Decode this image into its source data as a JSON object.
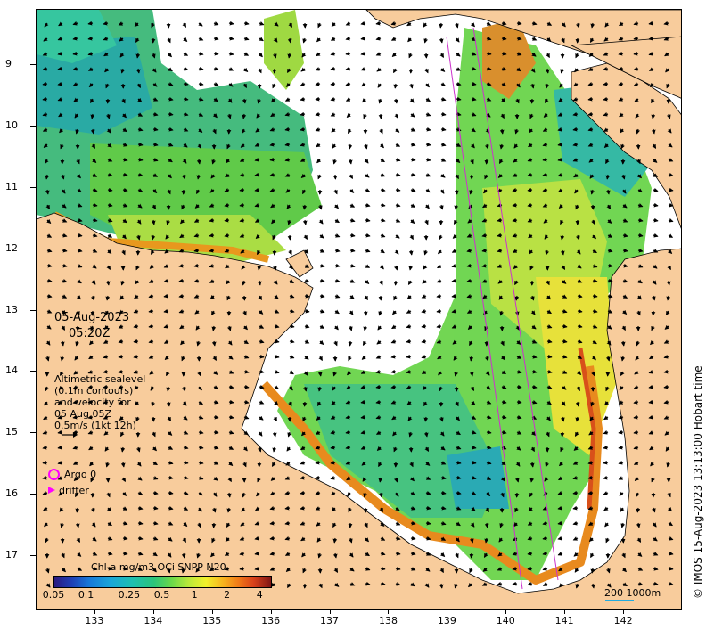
{
  "map": {
    "date": "05-Aug-2023",
    "time": "05:20Z",
    "notes": [
      "Altimetric sealevel",
      "(0.1m contours)",
      "and velocity for",
      "05 Aug 05Z",
      "0.5m/s (1kt 12h)"
    ],
    "legend": {
      "argo": "Argo 0",
      "drifter": "drifter"
    },
    "colorbar_title": "Chl-a mg/m3 OCi SNPP N20",
    "colorbar_ticks": [
      "0.05",
      "0.1",
      "0.25",
      "0.5",
      "1",
      "2",
      "4"
    ],
    "colorbar_range": [
      0.05,
      5
    ],
    "colorbar_scale": "log",
    "scale_label": "200  1000m",
    "copyright": "© IMOS 15-Aug-2023 13:13:00 Hobart time",
    "lat_ticks": [
      "9",
      "10",
      "11",
      "12",
      "13",
      "14",
      "15",
      "16",
      "17"
    ],
    "lon_ticks": [
      "133",
      "134",
      "135",
      "136",
      "137",
      "138",
      "139",
      "140",
      "141",
      "142"
    ],
    "lat_range": [
      -8.1,
      -17.9
    ],
    "lon_range": [
      132.0,
      143.0
    ],
    "colors": {
      "land": "#f8cc9c",
      "nodata": "#ffffff",
      "argo": "#ff00ff",
      "drifter": "#ff00ff",
      "track": "#cc33cc"
    }
  }
}
